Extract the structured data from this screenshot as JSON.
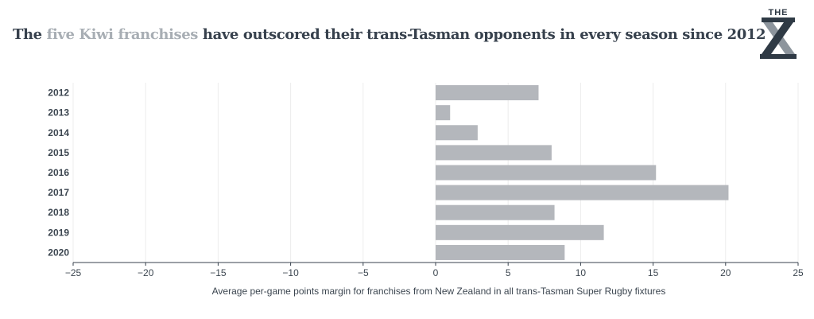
{
  "title": {
    "prefix": "The ",
    "highlight": "five Kiwi franchises",
    "rest": " have outscored their trans-Tasman opponents in every season since 2012"
  },
  "logo": {
    "text": "THE",
    "icon": "x-logo-icon"
  },
  "colors": {
    "bar": "#b4b7bc",
    "title": "#37414d",
    "highlight": "#a8aeb4",
    "grid": "#ececec"
  },
  "chart_data": {
    "type": "bar",
    "orientation": "horizontal",
    "categories": [
      "2012",
      "2013",
      "2014",
      "2015",
      "2016",
      "2017",
      "2018",
      "2019",
      "2020"
    ],
    "values": [
      7.1,
      1.0,
      2.9,
      8.0,
      15.2,
      20.2,
      8.2,
      11.6,
      8.9
    ],
    "xlim": [
      -25,
      25
    ],
    "xticks": [
      -25,
      -20,
      -15,
      -10,
      -5,
      0,
      5,
      10,
      15,
      20,
      25
    ],
    "xtick_labels": [
      "−25",
      "−20",
      "−15",
      "−10",
      "−5",
      "0",
      "5",
      "10",
      "15",
      "20",
      "25"
    ],
    "xlabel": "Average per-game points margin for franchises from New Zealand in all trans-Tasman Super Rugby fixtures",
    "grid": true
  }
}
